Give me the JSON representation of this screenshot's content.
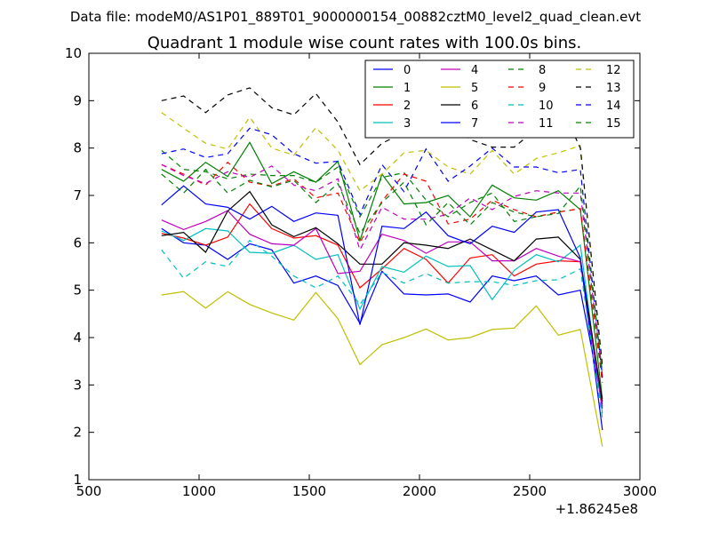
{
  "figure": {
    "suptitle": "Data file: modeM0/AS1P01_889T01_9000000154_00882cztM0_level2_quad_clean.evt",
    "axis_offset_label": "+1.86245e8"
  },
  "chart_data": {
    "type": "line",
    "title": "Quadrant 1 module wise count rates with 100.0s bins.",
    "xlabel": "",
    "ylabel": "",
    "xlim": [
      500,
      3000
    ],
    "ylim": [
      1,
      10
    ],
    "x_ticks": [
      "500",
      "1000",
      "1500",
      "2000",
      "2500",
      "3000"
    ],
    "y_ticks": [
      "1",
      "2",
      "3",
      "4",
      "5",
      "6",
      "7",
      "8",
      "9",
      "10"
    ],
    "legend_position": "upper-right",
    "legend_columns": 4,
    "x": [
      830,
      930,
      1030,
      1130,
      1230,
      1330,
      1430,
      1530,
      1630,
      1730,
      1830,
      1930,
      2030,
      2130,
      2230,
      2330,
      2430,
      2530,
      2630,
      2730,
      2830
    ],
    "series": [
      {
        "name": "0",
        "color": "#0000ff",
        "dash": "solid",
        "values": [
          6.3,
          6.0,
          5.95,
          5.65,
          5.98,
          5.85,
          5.15,
          5.3,
          5.1,
          4.3,
          5.4,
          4.92,
          4.9,
          4.92,
          4.75,
          5.3,
          5.2,
          5.3,
          4.9,
          5.0,
          2.6
        ]
      },
      {
        "name": "1",
        "color": "#008000",
        "dash": "solid",
        "values": [
          7.55,
          7.3,
          7.7,
          7.4,
          8.12,
          7.25,
          7.5,
          7.28,
          7.72,
          6.05,
          7.45,
          6.82,
          6.85,
          7.0,
          6.55,
          7.22,
          6.95,
          6.9,
          7.1,
          6.7,
          2.7
        ]
      },
      {
        "name": "2",
        "color": "#ff0000",
        "dash": "solid",
        "values": [
          6.2,
          6.1,
          5.95,
          6.12,
          6.82,
          6.3,
          6.1,
          6.15,
          5.95,
          5.05,
          5.45,
          5.88,
          5.65,
          5.15,
          5.68,
          5.75,
          5.3,
          5.55,
          5.62,
          5.6,
          2.55
        ]
      },
      {
        "name": "3",
        "color": "#00bfbf",
        "dash": "solid",
        "values": [
          6.25,
          6.05,
          6.3,
          6.25,
          5.8,
          5.78,
          5.95,
          5.65,
          5.75,
          4.6,
          5.5,
          5.38,
          5.72,
          5.5,
          5.52,
          4.8,
          5.42,
          5.75,
          5.6,
          5.95,
          2.4
        ]
      },
      {
        "name": "4",
        "color": "#bf00bf",
        "dash": "solid",
        "values": [
          6.48,
          6.28,
          6.45,
          6.68,
          6.18,
          5.98,
          5.95,
          6.3,
          5.35,
          5.4,
          6.18,
          6.05,
          5.78,
          6.02,
          6.02,
          5.62,
          5.62,
          5.88,
          5.72,
          5.6,
          2.5
        ]
      },
      {
        "name": "5",
        "color": "#bfbf00",
        "dash": "solid",
        "values": [
          4.9,
          4.97,
          4.62,
          4.97,
          4.7,
          4.52,
          4.37,
          4.95,
          4.4,
          3.43,
          3.85,
          4.0,
          4.18,
          3.95,
          4.0,
          4.17,
          4.2,
          4.67,
          4.05,
          4.17,
          1.7
        ]
      },
      {
        "name": "6",
        "color": "#000000",
        "dash": "solid",
        "values": [
          6.15,
          6.22,
          5.8,
          6.67,
          7.08,
          6.38,
          6.13,
          6.32,
          5.98,
          5.55,
          5.55,
          6.0,
          5.95,
          5.88,
          6.08,
          5.85,
          5.62,
          6.08,
          6.12,
          5.65,
          2.65
        ]
      },
      {
        "name": "7",
        "color": "#0000ff",
        "dash": "solid",
        "values": [
          6.8,
          7.2,
          6.82,
          6.75,
          6.5,
          6.77,
          6.45,
          6.63,
          6.58,
          4.27,
          6.35,
          6.3,
          6.65,
          6.15,
          5.98,
          6.35,
          6.22,
          6.65,
          6.7,
          5.68,
          2.05
        ]
      },
      {
        "name": "8",
        "color": "#008000",
        "dash": "dashed",
        "values": [
          7.95,
          7.55,
          7.5,
          7.35,
          7.45,
          7.42,
          7.42,
          7.28,
          7.6,
          6.55,
          7.38,
          7.48,
          6.9,
          6.55,
          6.85,
          7.05,
          6.45,
          6.55,
          6.65,
          6.72,
          3.1
        ]
      },
      {
        "name": "9",
        "color": "#ff0000",
        "dash": "dashed",
        "values": [
          7.65,
          7.45,
          7.22,
          7.7,
          7.28,
          7.2,
          7.35,
          6.95,
          7.05,
          6.0,
          6.88,
          7.45,
          7.3,
          6.4,
          6.5,
          6.9,
          6.7,
          6.55,
          6.65,
          6.72,
          3.05
        ]
      },
      {
        "name": "10",
        "color": "#00bfbf",
        "dash": "dashed",
        "values": [
          5.85,
          5.25,
          5.6,
          5.5,
          6.05,
          5.72,
          5.3,
          5.05,
          5.3,
          4.7,
          5.38,
          5.15,
          5.35,
          5.15,
          5.18,
          5.18,
          5.1,
          5.2,
          5.22,
          5.45,
          2.3
        ]
      },
      {
        "name": "11",
        "color": "#bf00bf",
        "dash": "dashed",
        "values": [
          7.65,
          7.42,
          7.25,
          7.5,
          7.38,
          7.62,
          7.22,
          7.1,
          7.35,
          5.85,
          6.75,
          6.5,
          6.5,
          6.6,
          6.95,
          6.7,
          6.98,
          7.1,
          7.05,
          7.05,
          3.2
        ]
      },
      {
        "name": "12",
        "color": "#bfbf00",
        "dash": "dashed",
        "values": [
          8.75,
          8.42,
          8.1,
          7.98,
          8.65,
          8.0,
          7.85,
          8.43,
          7.95,
          7.1,
          7.45,
          7.9,
          7.95,
          7.6,
          7.45,
          7.95,
          7.45,
          7.78,
          7.9,
          8.05,
          3.3
        ]
      },
      {
        "name": "13",
        "color": "#000000",
        "dash": "dashed",
        "values": [
          9.0,
          9.1,
          8.75,
          9.12,
          9.27,
          8.85,
          8.7,
          9.15,
          8.55,
          7.65,
          8.1,
          8.33,
          8.22,
          8.65,
          8.18,
          8.02,
          8.02,
          8.4,
          9.0,
          8.0,
          3.4
        ]
      },
      {
        "name": "14",
        "color": "#0000ff",
        "dash": "dashed",
        "values": [
          7.88,
          7.98,
          7.8,
          7.88,
          8.42,
          8.28,
          7.88,
          7.68,
          7.72,
          6.6,
          7.65,
          7.08,
          7.98,
          7.3,
          7.62,
          8.0,
          7.6,
          7.6,
          7.48,
          7.55,
          3.15
        ]
      },
      {
        "name": "15",
        "color": "#008000",
        "dash": "dashed",
        "values": [
          7.45,
          7.05,
          7.55,
          7.05,
          7.32,
          7.18,
          7.32,
          6.85,
          7.25,
          6.2,
          6.85,
          7.28,
          6.38,
          6.85,
          6.38,
          6.85,
          6.65,
          6.55,
          6.62,
          7.2,
          3.25
        ]
      }
    ]
  }
}
